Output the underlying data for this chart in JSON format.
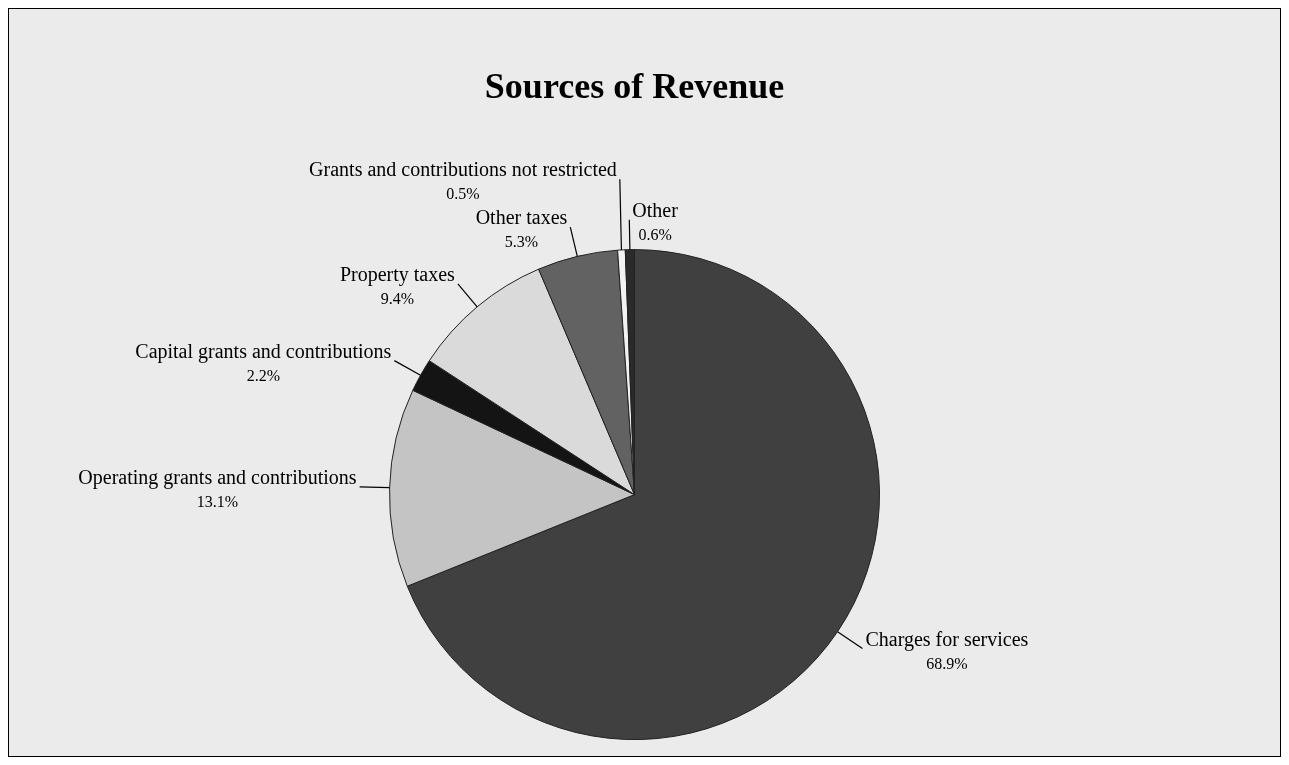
{
  "chart_data": {
    "type": "pie",
    "title": "Sources of Revenue",
    "categories": [
      "Charges for services",
      "Operating grants and contributions",
      "Capital grants and contributions",
      "Property taxes",
      "Other taxes",
      "Grants and contributions not restricted",
      "Other"
    ],
    "values": [
      68.9,
      13.1,
      2.2,
      9.4,
      5.3,
      0.5,
      0.6
    ],
    "value_labels": [
      "68.9%",
      "13.1%",
      "2.2%",
      "9.4%",
      "5.3%",
      "0.5%",
      "0.6%"
    ],
    "colors": [
      "#404040",
      "#c4c4c4",
      "#141414",
      "#dadada",
      "#626262",
      "#f2f2f2",
      "#2a2a2a"
    ]
  }
}
